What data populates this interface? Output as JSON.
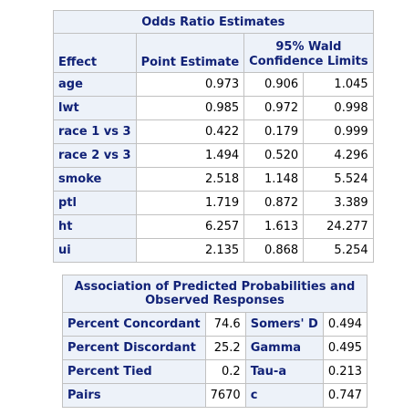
{
  "odds_table": {
    "title": "Odds Ratio Estimates",
    "headers": {
      "effect": "Effect",
      "point_estimate": "Point Estimate",
      "ci_line1": "95% Wald",
      "ci_line2": "Confidence Limits"
    },
    "rows": [
      {
        "effect": "age",
        "estimate": "0.973",
        "lower": "0.906",
        "upper": "1.045"
      },
      {
        "effect": "lwt",
        "estimate": "0.985",
        "lower": "0.972",
        "upper": "0.998"
      },
      {
        "effect": "race 1 vs 3",
        "estimate": "0.422",
        "lower": "0.179",
        "upper": "0.999"
      },
      {
        "effect": "race 2 vs 3",
        "estimate": "1.494",
        "lower": "0.520",
        "upper": "4.296"
      },
      {
        "effect": "smoke",
        "estimate": "2.518",
        "lower": "1.148",
        "upper": "5.524"
      },
      {
        "effect": "ptl",
        "estimate": "1.719",
        "lower": "0.872",
        "upper": "3.389"
      },
      {
        "effect": "ht",
        "estimate": "6.257",
        "lower": "1.613",
        "upper": "24.277"
      },
      {
        "effect": "ui",
        "estimate": "2.135",
        "lower": "0.868",
        "upper": "5.254"
      }
    ]
  },
  "assoc_table": {
    "title_line1": "Association of Predicted Probabilities and",
    "title_line2": "Observed Responses",
    "rows": [
      {
        "label1": "Percent Concordant",
        "value1": "74.6",
        "label2": "Somers' D",
        "value2": "0.494"
      },
      {
        "label1": "Percent Discordant",
        "value1": "25.2",
        "label2": "Gamma",
        "value2": "0.495"
      },
      {
        "label1": "Percent Tied",
        "value1": "0.2",
        "label2": "Tau-a",
        "value2": "0.213"
      },
      {
        "label1": "Pairs",
        "value1": "7670",
        "label2": "c",
        "value2": "0.747"
      }
    ]
  }
}
